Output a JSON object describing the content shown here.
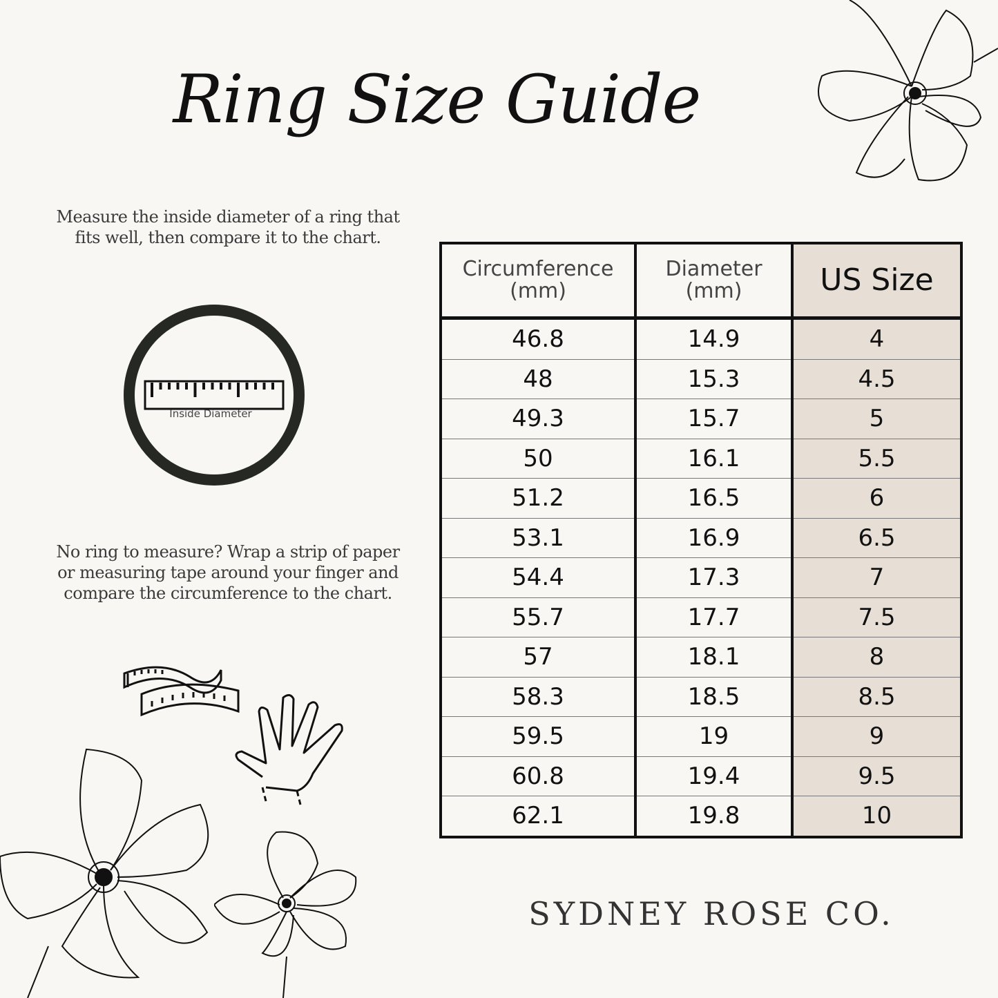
{
  "title": "Ring Size Guide",
  "instructions": {
    "measure_ring": "Measure the inside diameter of a ring that fits well, then compare it to the chart.",
    "no_ring": "No ring to measure? Wrap a strip of paper or measuring tape around your finger and compare the circumference to the chart."
  },
  "ring_diagram": {
    "label": "Inside Diameter"
  },
  "table": {
    "headers": [
      "Circumference (mm)",
      "Diameter (mm)",
      "US Size"
    ],
    "rows": [
      [
        "46.8",
        "14.9",
        "4"
      ],
      [
        "48",
        "15.3",
        "4.5"
      ],
      [
        "49.3",
        "15.7",
        "5"
      ],
      [
        "50",
        "16.1",
        "5.5"
      ],
      [
        "51.2",
        "16.5",
        "6"
      ],
      [
        "53.1",
        "16.9",
        "6.5"
      ],
      [
        "54.4",
        "17.3",
        "7"
      ],
      [
        "55.7",
        "17.7",
        "7.5"
      ],
      [
        "57",
        "18.1",
        "8"
      ],
      [
        "58.3",
        "18.5",
        "8.5"
      ],
      [
        "59.5",
        "19",
        "9"
      ],
      [
        "60.8",
        "19.4",
        "9.5"
      ],
      [
        "62.1",
        "19.8",
        "10"
      ]
    ]
  },
  "brand": "SYDNEY ROSE CO.",
  "colors": {
    "background": "#f8f7f4",
    "highlight_column": "#e7dfd5",
    "ink": "#111111"
  },
  "icons": [
    "flower-illustration",
    "ruler-icon",
    "measuring-tape-icon",
    "hand-icon"
  ]
}
